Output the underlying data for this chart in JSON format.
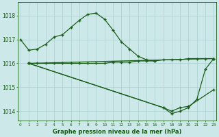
{
  "hours": [
    0,
    1,
    2,
    3,
    4,
    5,
    6,
    7,
    8,
    9,
    10,
    11,
    12,
    13,
    14,
    15,
    16,
    17,
    18,
    19,
    20,
    21,
    22,
    23
  ],
  "line1_x": [
    0,
    1,
    2,
    3,
    4,
    5,
    6,
    7,
    8,
    9,
    10,
    11,
    12,
    13,
    14,
    15,
    16
  ],
  "line1_y": [
    1017.0,
    1016.55,
    1016.6,
    1016.8,
    1017.1,
    1017.2,
    1017.5,
    1017.8,
    1018.05,
    1018.1,
    1017.85,
    1017.4,
    1016.9,
    1016.6,
    1016.3,
    1016.15,
    1016.1
  ],
  "line2_x": [
    1,
    2,
    3,
    4,
    5,
    6,
    7,
    8,
    9,
    10,
    11,
    12,
    13,
    14,
    15,
    16,
    17,
    18,
    19,
    20,
    21,
    22,
    23
  ],
  "line2_y": [
    1016.0,
    1016.0,
    1016.0,
    1016.0,
    1016.0,
    1016.0,
    1016.0,
    1016.0,
    1016.0,
    1016.0,
    1016.05,
    1016.05,
    1016.05,
    1016.1,
    1016.1,
    1016.1,
    1016.15,
    1016.15,
    1016.15,
    1016.2,
    1016.2,
    1016.2,
    1016.2
  ],
  "line3_x": [
    1,
    23
  ],
  "line3_y": [
    1016.0,
    1016.2
  ],
  "line4_x": [
    1,
    17,
    18,
    19,
    20,
    21,
    22,
    23
  ],
  "line4_y": [
    1016.0,
    1014.15,
    1013.9,
    1014.0,
    1014.15,
    1014.5,
    1015.75,
    1016.2
  ],
  "line5_x": [
    1,
    17,
    18,
    19,
    20,
    23
  ],
  "line5_y": [
    1016.0,
    1014.15,
    1014.0,
    1014.15,
    1014.2,
    1014.9
  ],
  "ylim": [
    1013.6,
    1018.55
  ],
  "yticks": [
    1014,
    1015,
    1016,
    1017,
    1018
  ],
  "xlim": [
    -0.3,
    23.3
  ],
  "xlabel_text": "Graphe pression niveau de la mer (hPa)",
  "bg_color": "#cce8e8",
  "grid_color": "#aacfcf",
  "line_color": "#1a5c1a",
  "tick_color": "#1a5c1a"
}
